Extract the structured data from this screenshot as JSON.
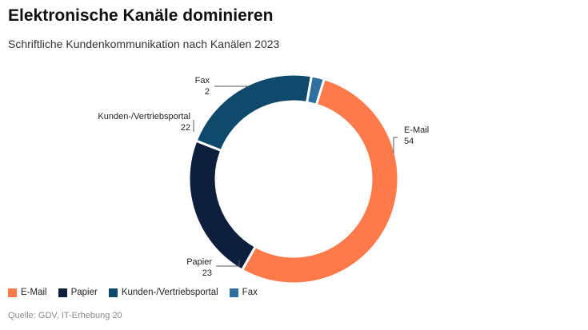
{
  "header": {
    "title": "Elektronische Kanäle dominieren",
    "subtitle": "Schriftliche Kundenkommunikation nach Kanälen 2023"
  },
  "chart_data": {
    "type": "pie",
    "variant": "donut",
    "categories": [
      "E-Mail",
      "Papier",
      "Kunden-/Vertriebsportal",
      "Fax"
    ],
    "values": [
      54,
      23,
      22,
      2
    ],
    "colors": [
      "#ff7a4a",
      "#0d1f3c",
      "#0f4a6c",
      "#2f6f9f"
    ],
    "start_angle_deg": 17,
    "direction": "clockwise",
    "legend": "bottom-left"
  },
  "legend": {
    "items": [
      "E-Mail",
      "Papier",
      "Kunden-/Vertriebsportal",
      "Fax"
    ]
  },
  "source": "Quelle: GDV, IT-Erhebung 20"
}
